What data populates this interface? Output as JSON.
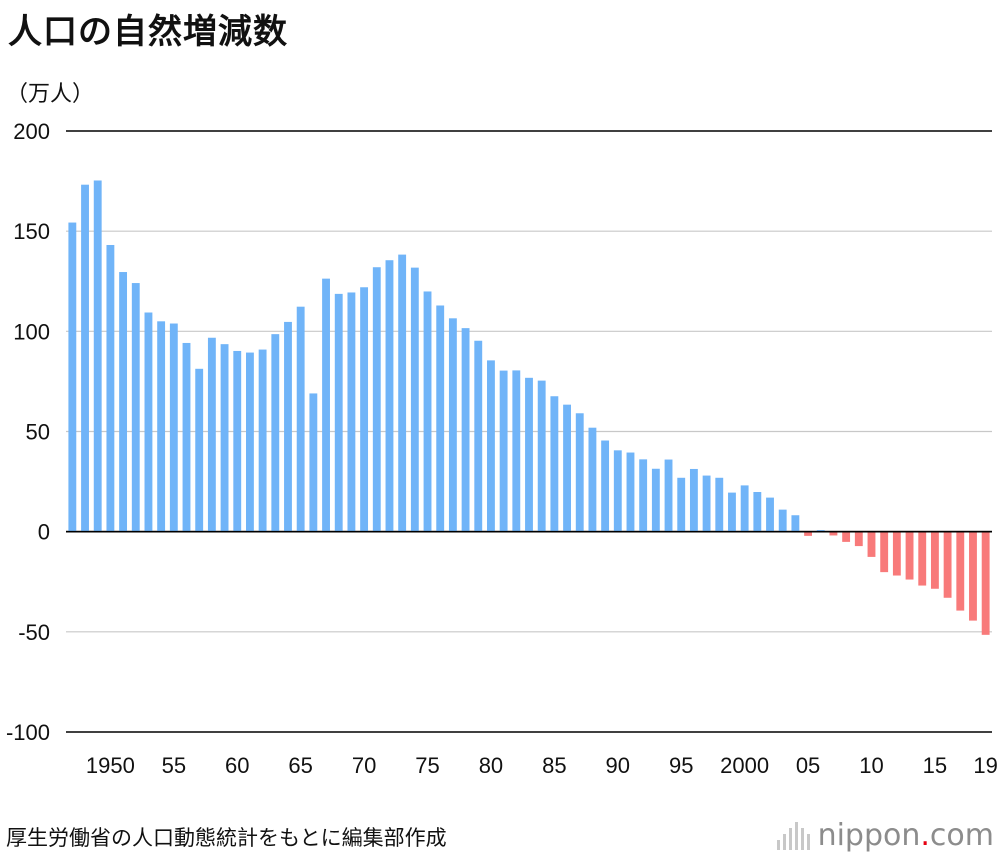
{
  "title": "人口の自然増減数",
  "unit_label": "（万人）",
  "source": "厚生労働省の人口動態統計をもとに編集部作成",
  "logo": {
    "prefix": "nippon",
    "dot": ".",
    "suffix": "com"
  },
  "colors": {
    "positive": "#70b4f8",
    "negative": "#f87a7a",
    "grid": "#c8c8c8",
    "axis": "#000000"
  },
  "chart_data": {
    "type": "bar",
    "title": "人口の自然増減数",
    "ylabel": "（万人）",
    "xlabel": "",
    "ylim": [
      -100,
      200
    ],
    "yticks": [
      200,
      150,
      100,
      50,
      0,
      -50,
      -100
    ],
    "x": [
      1947,
      1948,
      1949,
      1950,
      1951,
      1952,
      1953,
      1954,
      1955,
      1956,
      1957,
      1958,
      1959,
      1960,
      1961,
      1962,
      1963,
      1964,
      1965,
      1966,
      1967,
      1968,
      1969,
      1970,
      1971,
      1972,
      1973,
      1974,
      1975,
      1976,
      1977,
      1978,
      1979,
      1980,
      1981,
      1982,
      1983,
      1984,
      1985,
      1986,
      1987,
      1988,
      1989,
      1990,
      1991,
      1992,
      1993,
      1994,
      1995,
      1996,
      1997,
      1998,
      1999,
      2000,
      2001,
      2002,
      2003,
      2004,
      2005,
      2006,
      2007,
      2008,
      2009,
      2010,
      2011,
      2012,
      2013,
      2014,
      2015,
      2016,
      2017,
      2018,
      2019
    ],
    "values": [
      154.3,
      173.2,
      175.3,
      143.1,
      129.6,
      124.1,
      109.4,
      105.0,
      103.9,
      94.2,
      81.3,
      96.8,
      93.6,
      90.2,
      89.4,
      90.9,
      98.6,
      104.7,
      112.3,
      69.0,
      126.3,
      118.7,
      119.4,
      122.0,
      132.0,
      135.5,
      138.3,
      131.8,
      119.9,
      112.9,
      106.5,
      101.6,
      95.3,
      85.5,
      80.4,
      80.5,
      76.8,
      75.4,
      67.6,
      63.4,
      59.1,
      51.9,
      45.5,
      40.6,
      39.5,
      36.1,
      31.4,
      36.0,
      26.9,
      31.3,
      28.0,
      26.9,
      19.5,
      23.1,
      19.8,
      17.0,
      11.0,
      8.2,
      -2.1,
      0.8,
      -1.9,
      -5.1,
      -7.2,
      -12.6,
      -20.2,
      -21.9,
      -23.9,
      -26.9,
      -28.5,
      -33.0,
      -39.4,
      -44.4,
      -51.5
    ],
    "xtick_labels": [
      {
        "year": 1950,
        "label": "1950"
      },
      {
        "year": 1955,
        "label": "55"
      },
      {
        "year": 1960,
        "label": "60"
      },
      {
        "year": 1965,
        "label": "65"
      },
      {
        "year": 1970,
        "label": "70"
      },
      {
        "year": 1975,
        "label": "75"
      },
      {
        "year": 1980,
        "label": "80"
      },
      {
        "year": 1985,
        "label": "85"
      },
      {
        "year": 1990,
        "label": "90"
      },
      {
        "year": 1995,
        "label": "95"
      },
      {
        "year": 2000,
        "label": "2000"
      },
      {
        "year": 2005,
        "label": "05"
      },
      {
        "year": 2010,
        "label": "10"
      },
      {
        "year": 2015,
        "label": "15"
      },
      {
        "year": 2019,
        "label": "19"
      }
    ],
    "grid": true
  }
}
